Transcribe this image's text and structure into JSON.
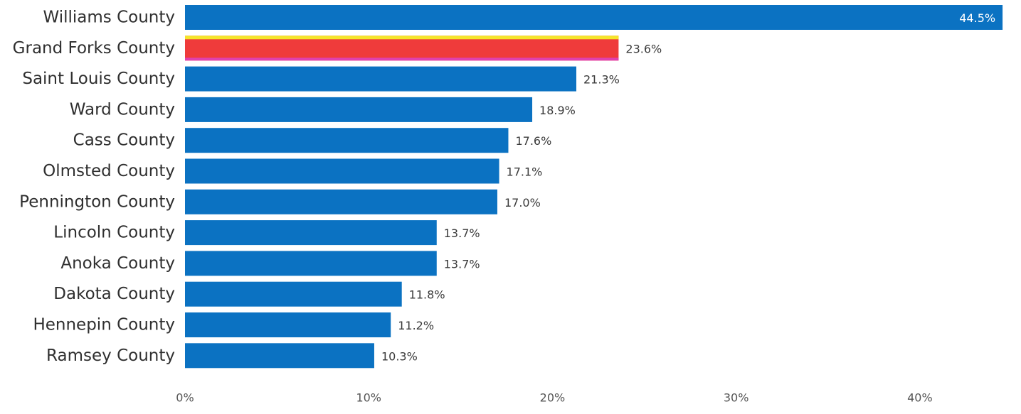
{
  "chart_data": {
    "type": "bar",
    "orientation": "horizontal",
    "categories": [
      "Williams County",
      "Grand Forks County",
      "Saint Louis County",
      "Ward County",
      "Cass County",
      "Olmsted County",
      "Pennington County",
      "Lincoln County",
      "Anoka County",
      "Dakota County",
      "Hennepin County",
      "Ramsey County"
    ],
    "values": [
      44.5,
      23.6,
      21.3,
      18.9,
      17.6,
      17.1,
      17.0,
      13.7,
      13.7,
      11.8,
      11.2,
      10.3
    ],
    "data_labels": [
      "44.5%",
      "23.6%",
      "21.3%",
      "18.9%",
      "17.6%",
      "17.1%",
      "17.0%",
      "13.7%",
      "13.7%",
      "11.8%",
      "11.2%",
      "10.3%"
    ],
    "highlight_index": 1,
    "x_ticks": [
      0,
      10,
      20,
      30,
      40
    ],
    "x_tick_labels": [
      "0%",
      "10%",
      "20%",
      "30%",
      "40%"
    ],
    "xlim": [
      0,
      45
    ],
    "grid": false,
    "legend": "none",
    "colors": {
      "bar": "#0b72c2",
      "highlight": "#ef3b3b",
      "highlight_top_edge": "#f5e52a",
      "highlight_bottom_edge": "#e040b0"
    }
  }
}
